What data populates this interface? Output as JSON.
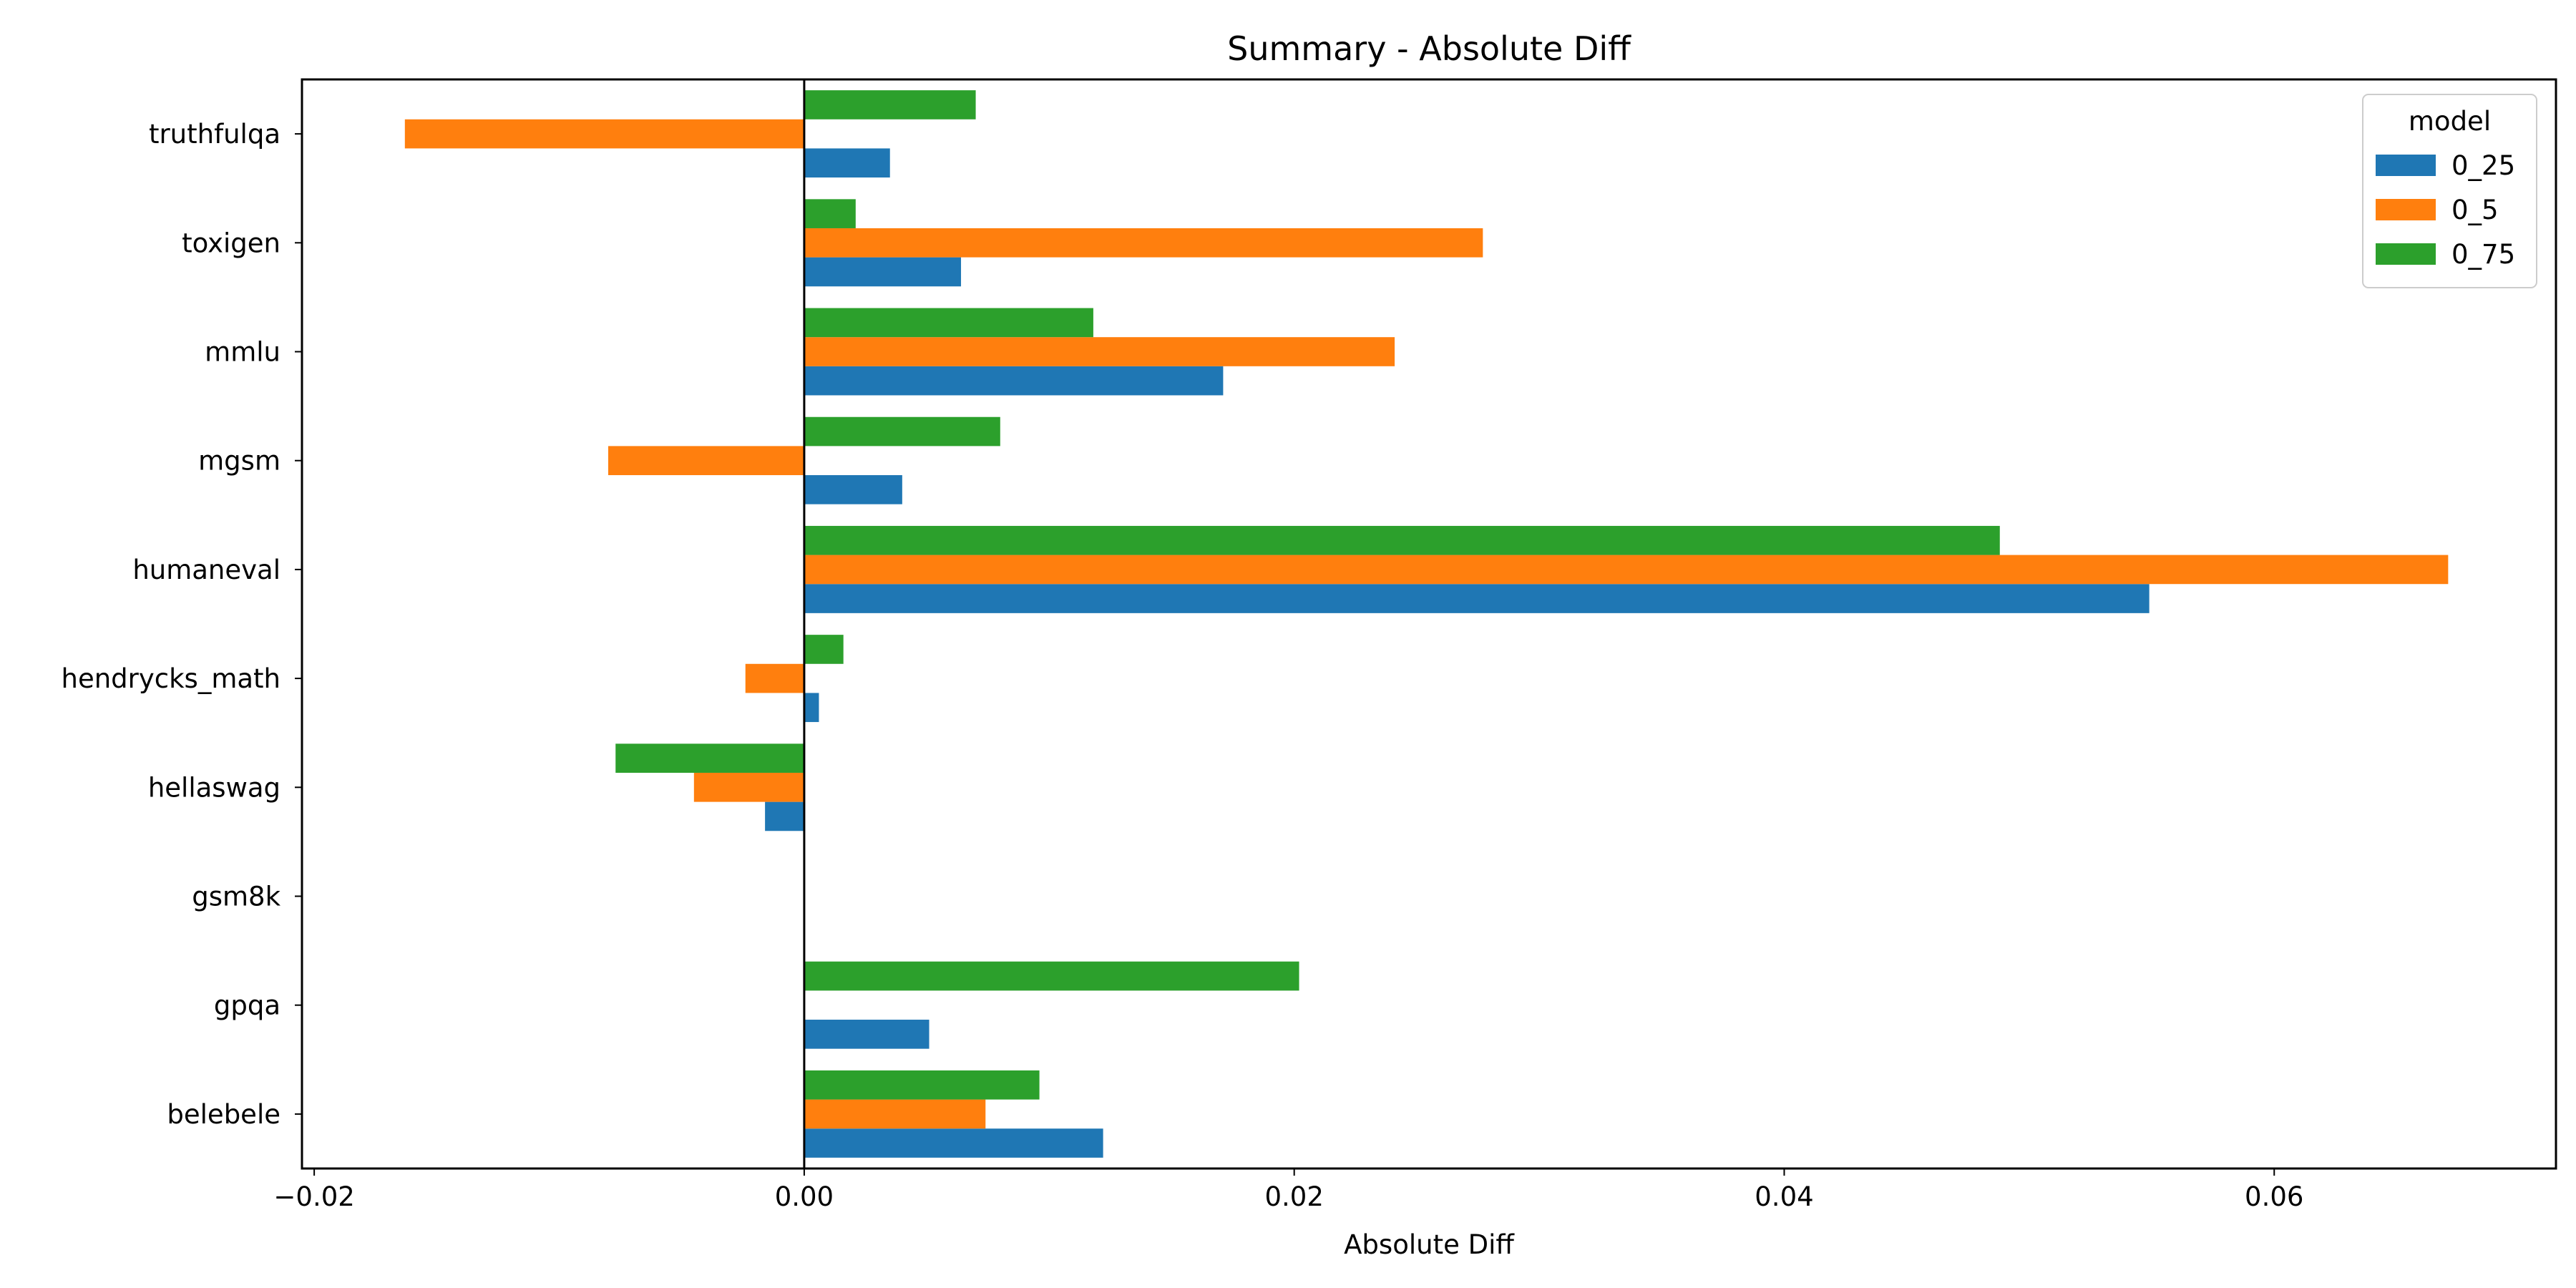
{
  "chart_data": {
    "type": "bar",
    "orientation": "horizontal",
    "title": "Summary - Absolute Diff",
    "xlabel": "Absolute Diff",
    "ylabel": "",
    "xlim": [
      -0.0205,
      0.0715
    ],
    "xticks": [
      -0.02,
      0.0,
      0.02,
      0.04,
      0.06
    ],
    "xtick_labels": [
      "−0.02",
      "0.00",
      "0.02",
      "0.04",
      "0.06"
    ],
    "grid": false,
    "legend": {
      "title": "model",
      "placement": "top-right"
    },
    "categories": [
      "truthfulqa",
      "toxigen",
      "mmlu",
      "mgsm",
      "humaneval",
      "hendrycks_math",
      "hellaswag",
      "gsm8k",
      "gpqa",
      "belebele"
    ],
    "series": [
      {
        "name": "0_25",
        "color": "#1f77b4",
        "values": [
          0.0035,
          0.0064,
          0.0171,
          0.004,
          0.0549,
          0.0006,
          -0.0016,
          0.0,
          0.0051,
          0.0122
        ]
      },
      {
        "name": "0_5",
        "color": "#ff7f0e",
        "values": [
          -0.0163,
          0.0277,
          0.0241,
          -0.008,
          0.0671,
          -0.0024,
          -0.0045,
          0.0,
          0.0,
          0.0074
        ]
      },
      {
        "name": "0_75",
        "color": "#2ca02c",
        "values": [
          0.007,
          0.0021,
          0.0118,
          0.008,
          0.0488,
          0.0016,
          -0.0077,
          0.0,
          0.0202,
          0.0096
        ]
      }
    ]
  }
}
